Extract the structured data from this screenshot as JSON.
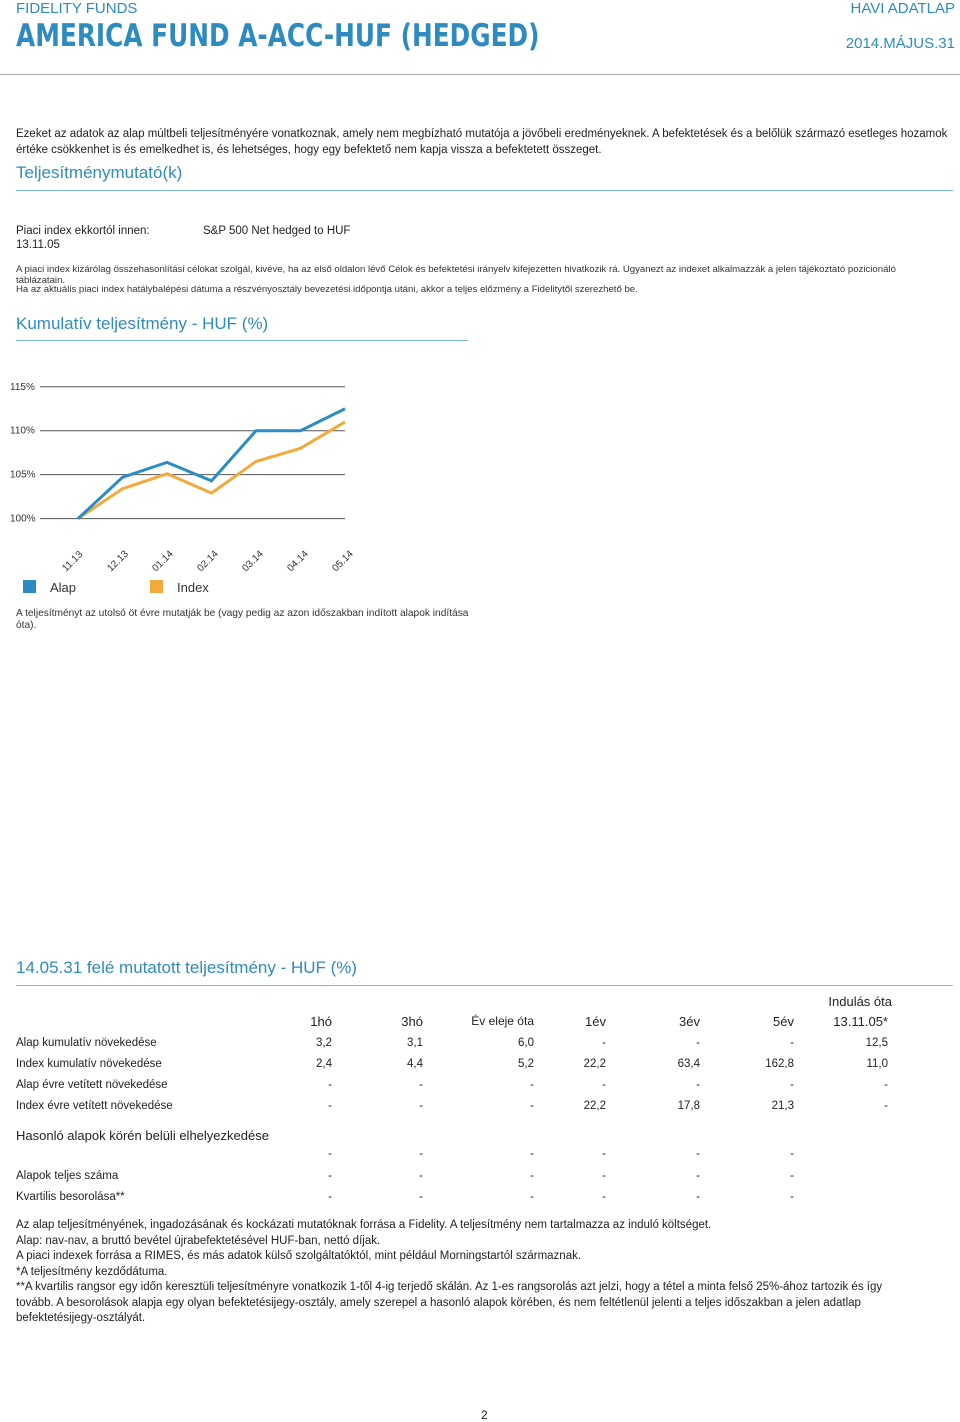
{
  "header": {
    "brand": "FIDELITY FUNDS",
    "doc_type": "HAVI ADATLAP",
    "fund_name": "AMERICA FUND A-ACC-HUF (HEDGED)",
    "date": "2014.MÁJUS.31"
  },
  "disclaimer": "Ezeket az adatok az alap múltbeli teljesítményére vonatkoznak, amely nem megbízható mutatója a jövőbeli eredményeknek. A befektetések és a belőlük származó esetleges hozamok értéke csökkenhet is és emelkedhet is, és lehetséges, hogy egy befektető nem kapja vissza a befektetett összeget.",
  "indicator": {
    "title": "Teljesítménymutató(k)",
    "index_label": "Piaci index ekkortól innen:",
    "index_date": "13.11.05",
    "index_name": "S&P 500 Net hedged to HUF",
    "note1": "A piaci index kizárólag összehasonlítási célokat szolgál, kivéve, ha az első oldalon lévő Célok és befektetési irányelv kifejezetten hivatkozik rá. Ugyanezt az indexet alkalmazzák a jelen tájékoztató pozicionáló táblázatain.",
    "note2": "Ha az aktuális piaci index hatálybalépési dátuma a részvényosztály bevezetési időpontja utáni, akkor a teljes előzmény a Fidelitytől szerezhető be."
  },
  "chart_section": {
    "title": "Kumulatív teljesítmény - HUF (%)",
    "caption": "A teljesítményt az utolsó öt évre mutatják be (vagy pedig az azon időszakban indított alapok indítása óta)."
  },
  "chart_data": {
    "type": "line",
    "categories": [
      "11.13",
      "12.13",
      "01.14",
      "02.14",
      "03.14",
      "04.14",
      "05.14"
    ],
    "series": [
      {
        "name": "Alap",
        "color": "#2b8cc4",
        "values": [
          100,
          104.7,
          106.4,
          104.3,
          110.0,
          110.0,
          112.5
        ]
      },
      {
        "name": "Index",
        "color": "#f4a93c",
        "values": [
          100,
          103.4,
          105.1,
          102.9,
          106.5,
          108.0,
          111.0
        ]
      }
    ],
    "y_ticks": [
      "115%",
      "110%",
      "105%",
      "100%"
    ],
    "ylim": [
      97,
      116
    ],
    "grid": false,
    "legend": "bottom-left"
  },
  "perf_section": {
    "title": "14.05.31 felé mutatott teljesítmény - HUF (%)",
    "since_launch_label": "Indulás óta",
    "columns": [
      "1hó",
      "3hó",
      "Év eleje óta",
      "1év",
      "3év",
      "5év",
      "13.11.05*"
    ],
    "rows": [
      {
        "label": "Alap kumulatív növekedése",
        "values": [
          "3,2",
          "3,1",
          "6,0",
          "-",
          "-",
          "-",
          "12,5"
        ]
      },
      {
        "label": "Index kumulatív növekedése",
        "values": [
          "2,4",
          "4,4",
          "5,2",
          "22,2",
          "63,4",
          "162,8",
          "11,0"
        ]
      },
      {
        "label": "Alap évre vetített növekedése",
        "values": [
          "-",
          "-",
          "-",
          "-",
          "-",
          "-",
          "-"
        ]
      },
      {
        "label": "Index évre vetített növekedése",
        "values": [
          "-",
          "-",
          "-",
          "22,2",
          "17,8",
          "21,3",
          "-"
        ]
      }
    ],
    "ranking_title": "Hasonló alapok körén belüli elhelyezkedése",
    "ranking_dash_row": [
      "-",
      "-",
      "-",
      "-",
      "-",
      "-"
    ],
    "ranking_rows": [
      {
        "label": "Alapok teljes száma",
        "values": [
          "-",
          "-",
          "-",
          "-",
          "-",
          "-"
        ]
      },
      {
        "label": "Kvartilis besorolása**",
        "values": [
          "-",
          "-",
          "-",
          "-",
          "-",
          "-"
        ]
      }
    ]
  },
  "footnotes": [
    "Az alap teljesítményének, ingadozásának és kockázati mutatóknak forrása a Fidelity. A teljesítmény nem tartalmazza az induló költséget.",
    "Alap: nav-nav, a bruttó bevétel újrabefektetésével HUF-ban, nettó díjak.",
    "A piaci indexek forrása a RIMES, és más adatok külső szolgáltatóktól, mint például Morningstartól származnak.",
    "*A teljesítmény kezdődátuma.",
    "**A kvartilis rangsor egy időn keresztüli teljesítményre vonatkozik 1-től 4-ig terjedő skálán. Az 1-es rangsorolás azt jelzi, hogy a tétel a minta felső 25%-ához tartozik és így tovább. A besorolások alapja egy olyan befektetésijegy-osztály, amely szerepel a hasonló alapok körében, és nem feltétlenül jelenti a teljes időszakban a jelen adatlap befektetésijegy-osztályát."
  ],
  "page_number": "2"
}
